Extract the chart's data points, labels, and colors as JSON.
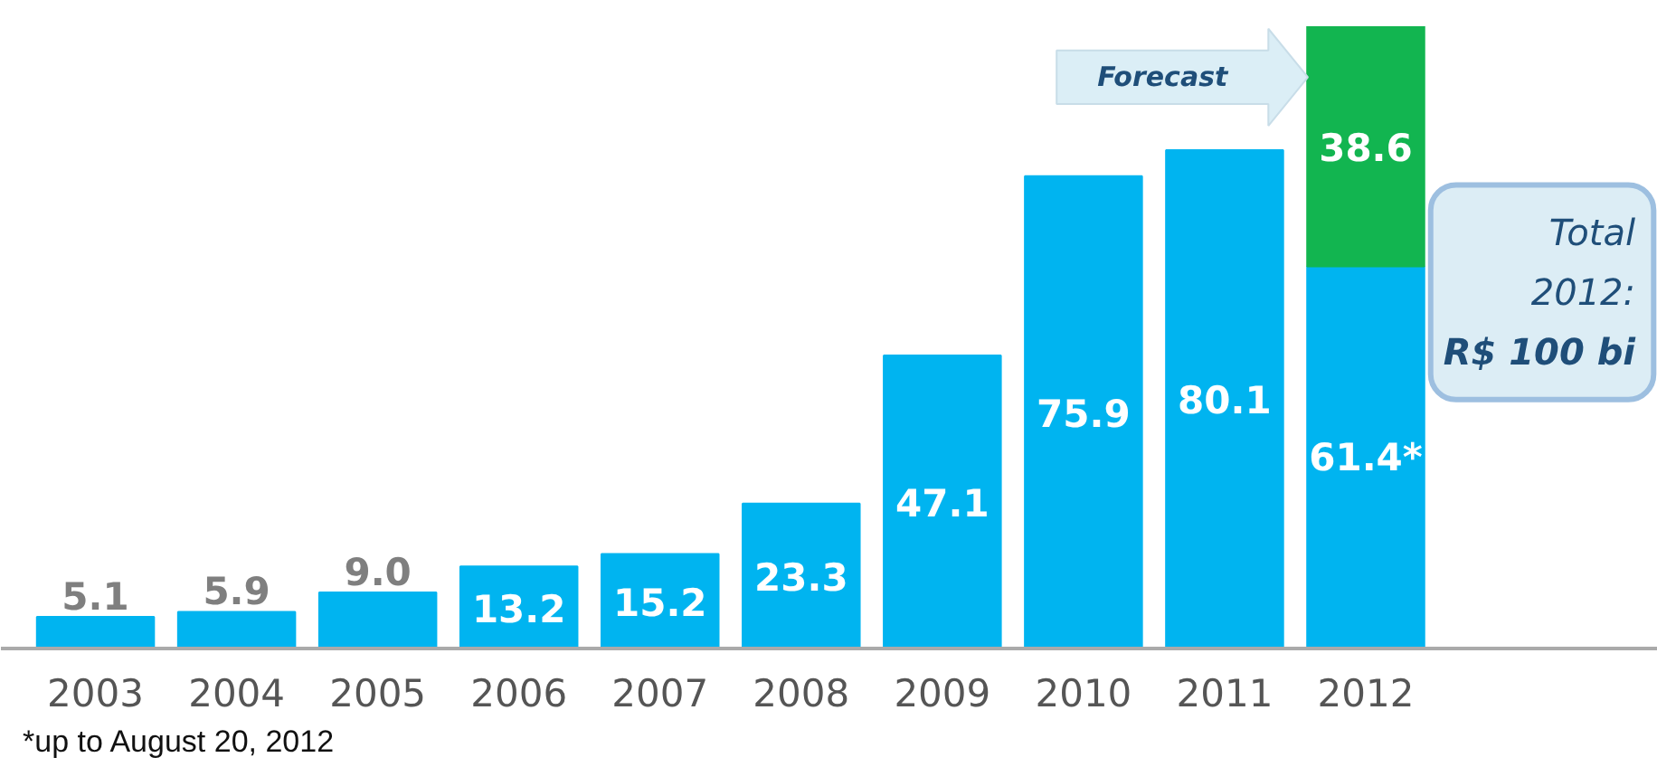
{
  "chart_data": {
    "type": "bar",
    "stacked": true,
    "categories": [
      "2003",
      "2004",
      "2005",
      "2006",
      "2007",
      "2008",
      "2009",
      "2010",
      "2011",
      "2012"
    ],
    "series": [
      {
        "color": "#00b4f0",
        "values": [
          5.1,
          5.9,
          9.0,
          13.2,
          15.2,
          23.3,
          47.1,
          75.9,
          80.1,
          61.4
        ],
        "value_labels": [
          "5.1",
          "5.9",
          "9.0",
          "13.2",
          "15.2",
          "23.3",
          "47.1",
          "75.9",
          "80.1",
          "61.4*"
        ]
      },
      {
        "color": "#12b550",
        "values": [
          null,
          null,
          null,
          null,
          null,
          null,
          null,
          null,
          null,
          38.6
        ],
        "value_labels": [
          null,
          null,
          null,
          null,
          null,
          null,
          null,
          null,
          null,
          "38.6"
        ]
      }
    ],
    "annotations": [
      "Forecast",
      "Total\n2012:\nR$ 100 bi",
      "*up to August 20, 2012"
    ],
    "grid": false
  }
}
